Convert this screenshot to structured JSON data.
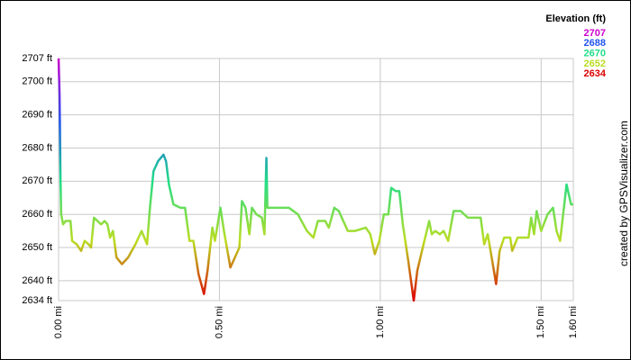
{
  "chart_data": {
    "type": "line",
    "legend_title": "Elevation (ft)",
    "color_scale": [
      {
        "value": 2707,
        "color": "#cc00cc"
      },
      {
        "value": 2688,
        "color": "#2255ee"
      },
      {
        "value": 2670,
        "color": "#22dd88"
      },
      {
        "value": 2652,
        "color": "#bbdd22"
      },
      {
        "value": 2634,
        "color": "#dd0000"
      }
    ],
    "credit": "created by GPSVisualizer.com",
    "x": [
      0.0,
      0.003,
      0.006,
      0.008,
      0.014,
      0.022,
      0.037,
      0.042,
      0.056,
      0.07,
      0.081,
      0.093,
      0.101,
      0.11,
      0.121,
      0.132,
      0.143,
      0.152,
      0.16,
      0.169,
      0.18,
      0.197,
      0.216,
      0.239,
      0.258,
      0.275,
      0.284,
      0.295,
      0.309,
      0.326,
      0.334,
      0.343,
      0.357,
      0.379,
      0.393,
      0.407,
      0.419,
      0.435,
      0.452,
      0.463,
      0.478,
      0.486,
      0.503,
      0.514,
      0.534,
      0.548,
      0.562,
      0.57,
      0.581,
      0.593,
      0.601,
      0.615,
      0.632,
      0.64,
      0.646,
      0.649,
      0.66,
      0.716,
      0.744,
      0.772,
      0.792,
      0.806,
      0.829,
      0.84,
      0.857,
      0.871,
      0.885,
      0.899,
      0.921,
      0.955,
      0.969,
      0.983,
      0.997,
      1.011,
      1.025,
      1.034,
      1.048,
      1.059,
      1.07,
      1.087,
      1.104,
      1.115,
      1.132,
      1.152,
      1.16,
      1.171,
      1.185,
      1.197,
      1.211,
      1.228,
      1.25,
      1.272,
      1.292,
      1.312,
      1.323,
      1.334,
      1.348,
      1.36,
      1.371,
      1.385,
      1.404,
      1.41,
      1.427,
      1.461,
      1.469,
      1.478,
      1.486,
      1.5,
      1.52,
      1.537,
      1.548,
      1.559,
      1.579,
      1.593,
      1.6
    ],
    "series": [
      {
        "values": [
          2707,
          2696,
          2670,
          2660,
          2657,
          2658,
          2658,
          2652,
          2651,
          2649,
          2652,
          2651,
          2650,
          2659,
          2658,
          2657,
          2658,
          2657,
          2653,
          2655,
          2647,
          2645,
          2647,
          2651,
          2655,
          2651,
          2662,
          2673,
          2676,
          2678,
          2676,
          2669,
          2663,
          2662,
          2662,
          2652,
          2652,
          2642,
          2636,
          2643,
          2656,
          2652,
          2662,
          2655,
          2644,
          2647,
          2650,
          2664,
          2662,
          2654,
          2662,
          2660,
          2659,
          2654,
          2677,
          2662,
          2662,
          2662,
          2660,
          2655,
          2653,
          2658,
          2658,
          2656,
          2662,
          2661,
          2658,
          2655,
          2655,
          2656,
          2654,
          2648,
          2652,
          2660,
          2660,
          2668,
          2667,
          2667,
          2657,
          2646,
          2634,
          2643,
          2650,
          2658,
          2654,
          2655,
          2654,
          2655,
          2652,
          2661,
          2661,
          2659,
          2659,
          2659,
          2651,
          2654,
          2646,
          2639,
          2649,
          2653,
          2653,
          2649,
          2653,
          2653,
          2659,
          2654,
          2661,
          2655,
          2660,
          2662,
          2655,
          2652,
          2669,
          2663,
          2663
        ]
      }
    ],
    "xlim": [
      0,
      1.6
    ],
    "ylim": [
      2634,
      2707
    ],
    "xticks": [
      {
        "value": 0,
        "label": "0.00 mi"
      },
      {
        "value": 0.5,
        "label": "0.50 mi"
      },
      {
        "value": 1.0,
        "label": "1.00 mi"
      },
      {
        "value": 1.5,
        "label": "1.50 mi"
      },
      {
        "value": 1.6,
        "label": "1.60 mi"
      }
    ],
    "yticks": [
      {
        "value": 2707,
        "label": "2707 ft"
      },
      {
        "value": 2700,
        "label": "2700 ft"
      },
      {
        "value": 2690,
        "label": "2690 ft"
      },
      {
        "value": 2680,
        "label": "2680 ft"
      },
      {
        "value": 2670,
        "label": "2670 ft"
      },
      {
        "value": 2660,
        "label": "2660 ft"
      },
      {
        "value": 2650,
        "label": "2650 ft"
      },
      {
        "value": 2640,
        "label": "2640 ft"
      },
      {
        "value": 2634,
        "label": "2634 ft"
      }
    ],
    "grid": true
  }
}
